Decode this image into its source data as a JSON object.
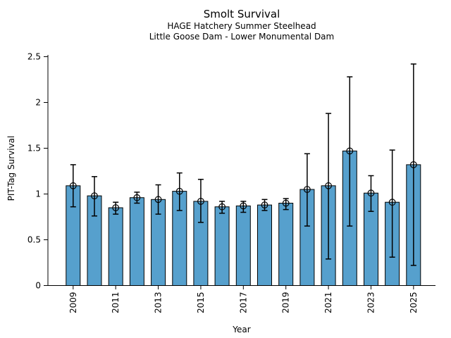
{
  "chart_data": {
    "type": "bar",
    "title": "Smolt Survival",
    "subtitle1": "HAGE Hatchery Summer Steelhead",
    "subtitle2": "Little Goose Dam - Lower Monumental Dam",
    "xlabel": "Year",
    "ylabel": "PIT-Tag Survival",
    "ylim": [
      0,
      2.5
    ],
    "ytick_values": [
      0,
      0.5,
      1,
      1.5,
      2,
      2.5
    ],
    "ytick_labels": [
      "0",
      "0.5",
      "1",
      "1.5",
      "2",
      "2.5"
    ],
    "categories": [
      "2009",
      "2010",
      "2011",
      "2012",
      "2013",
      "2014",
      "2015",
      "2016",
      "2017",
      "2018",
      "2019",
      "2020",
      "2021",
      "2022",
      "2023",
      "2024",
      "2025"
    ],
    "xtick_labels": [
      "2009",
      "2011",
      "2013",
      "2015",
      "2017",
      "2019",
      "2021",
      "2023",
      "2025"
    ],
    "series": [
      {
        "name": "PIT-Tag Survival",
        "values": [
          1.09,
          0.98,
          0.85,
          0.96,
          0.94,
          1.03,
          0.92,
          0.86,
          0.87,
          0.88,
          0.9,
          1.05,
          1.09,
          1.47,
          1.01,
          0.91,
          1.32
        ],
        "error_low": [
          0.86,
          0.76,
          0.78,
          0.9,
          0.78,
          0.82,
          0.69,
          0.79,
          0.8,
          0.82,
          0.83,
          0.65,
          0.29,
          0.65,
          0.81,
          0.31,
          0.22
        ],
        "error_high": [
          1.32,
          1.19,
          0.91,
          1.02,
          1.1,
          1.23,
          1.16,
          0.92,
          0.92,
          0.94,
          0.95,
          1.44,
          1.88,
          2.28,
          1.2,
          1.48,
          2.42
        ]
      }
    ],
    "grid": false,
    "legend_position": "none",
    "style": {
      "bar_color": "#56a0cd",
      "bar_edge_color": "#000000",
      "error_bar_color": "#000000",
      "marker": "open-circle",
      "background": "#ffffff"
    }
  }
}
